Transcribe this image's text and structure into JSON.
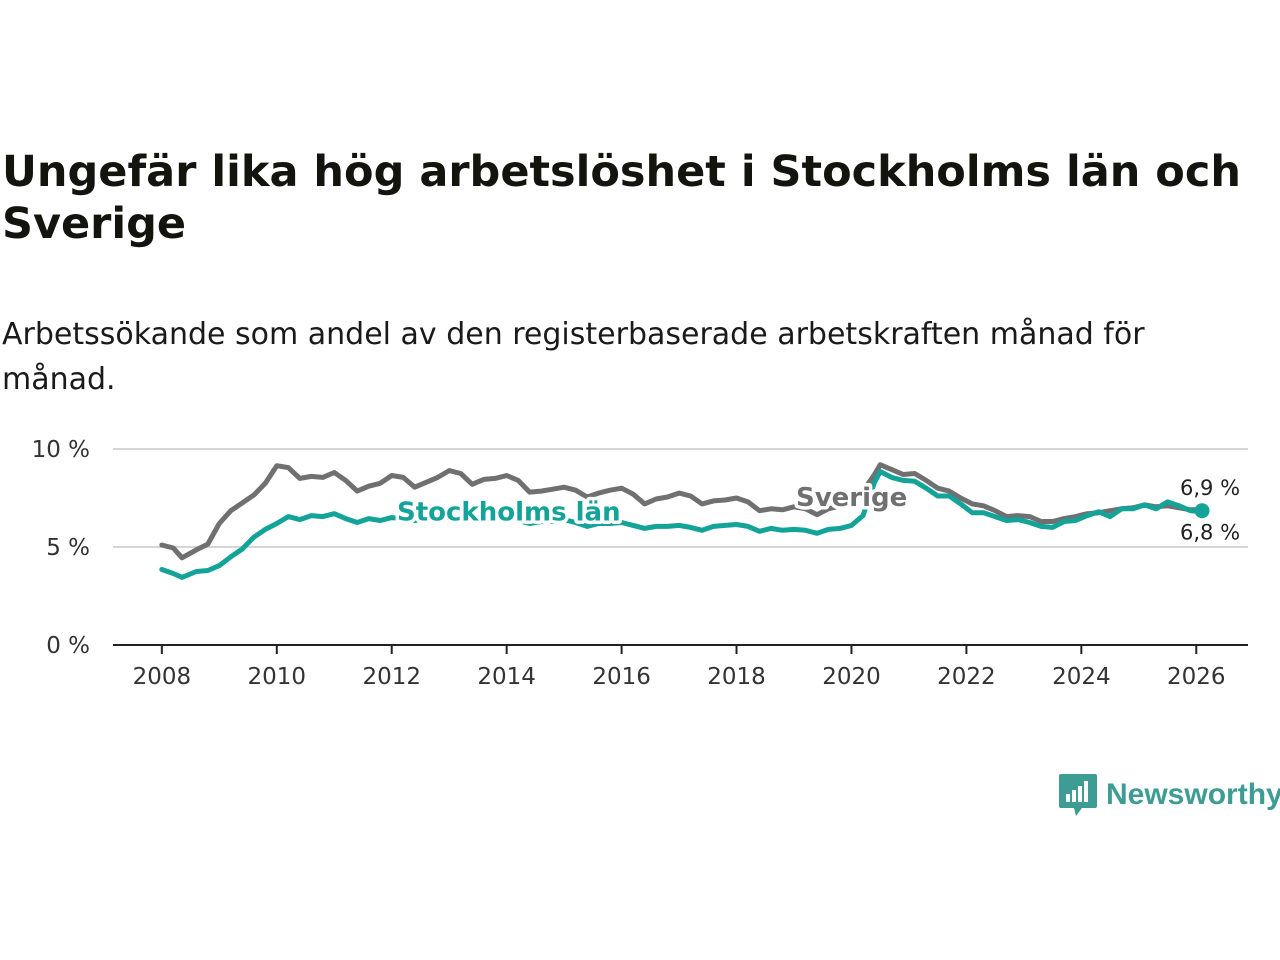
{
  "title": "Ungefär lika hög arbetslöshet i Stockholms län och Sverige",
  "subtitle": "Arbetssökande som andel av den registerbaserade arbetskraften månad för månad.",
  "brand": {
    "name": "Newsworthy",
    "icon": "newsworthy-chart-bubble-icon",
    "color": "#3d9c94"
  },
  "chart_data": {
    "type": "line",
    "title": "Ungefär lika hög arbetslöshet i Stockholms län och Sverige",
    "subtitle": "Arbetssökande som andel av den registerbaserade arbetskraften månad för månad.",
    "xlabel": "",
    "ylabel": "",
    "xlim": [
      2007.15,
      2026.9
    ],
    "ylim": [
      0,
      10
    ],
    "grid": true,
    "x_ticks": [
      2008,
      2010,
      2012,
      2014,
      2016,
      2018,
      2020,
      2022,
      2024,
      2026
    ],
    "x_tick_labels": [
      "2008",
      "2010",
      "2012",
      "2014",
      "2016",
      "2018",
      "2020",
      "2022",
      "2024",
      "2026"
    ],
    "y_ticks": [
      0,
      5,
      10
    ],
    "y_tick_labels": [
      "0 %",
      "5 %",
      "10 %"
    ],
    "series": [
      {
        "name": "Sverige",
        "color": "#707070",
        "label_position": "inline",
        "end_label": "6,9 %",
        "points": [
          [
            2008.0,
            5.1
          ],
          [
            2008.2,
            4.95
          ],
          [
            2008.35,
            4.45
          ],
          [
            2008.6,
            4.85
          ],
          [
            2008.8,
            5.15
          ],
          [
            2009.0,
            6.2
          ],
          [
            2009.2,
            6.85
          ],
          [
            2009.4,
            7.25
          ],
          [
            2009.6,
            7.65
          ],
          [
            2009.8,
            8.25
          ],
          [
            2010.0,
            9.15
          ],
          [
            2010.2,
            9.05
          ],
          [
            2010.4,
            8.5
          ],
          [
            2010.6,
            8.6
          ],
          [
            2010.8,
            8.55
          ],
          [
            2011.0,
            8.8
          ],
          [
            2011.2,
            8.4
          ],
          [
            2011.4,
            7.85
          ],
          [
            2011.6,
            8.1
          ],
          [
            2011.8,
            8.25
          ],
          [
            2012.0,
            8.65
          ],
          [
            2012.2,
            8.55
          ],
          [
            2012.4,
            8.05
          ],
          [
            2012.6,
            8.3
          ],
          [
            2012.8,
            8.55
          ],
          [
            2013.0,
            8.9
          ],
          [
            2013.2,
            8.75
          ],
          [
            2013.4,
            8.2
          ],
          [
            2013.6,
            8.45
          ],
          [
            2013.8,
            8.5
          ],
          [
            2014.0,
            8.65
          ],
          [
            2014.2,
            8.4
          ],
          [
            2014.4,
            7.8
          ],
          [
            2014.6,
            7.85
          ],
          [
            2014.8,
            7.95
          ],
          [
            2015.0,
            8.05
          ],
          [
            2015.2,
            7.9
          ],
          [
            2015.4,
            7.55
          ],
          [
            2015.6,
            7.75
          ],
          [
            2015.8,
            7.9
          ],
          [
            2016.0,
            8.0
          ],
          [
            2016.2,
            7.7
          ],
          [
            2016.4,
            7.2
          ],
          [
            2016.6,
            7.45
          ],
          [
            2016.8,
            7.55
          ],
          [
            2017.0,
            7.75
          ],
          [
            2017.2,
            7.6
          ],
          [
            2017.4,
            7.2
          ],
          [
            2017.6,
            7.35
          ],
          [
            2017.8,
            7.4
          ],
          [
            2018.0,
            7.5
          ],
          [
            2018.2,
            7.3
          ],
          [
            2018.4,
            6.85
          ],
          [
            2018.6,
            6.95
          ],
          [
            2018.8,
            6.9
          ],
          [
            2019.0,
            7.05
          ],
          [
            2019.2,
            6.95
          ],
          [
            2019.4,
            6.65
          ],
          [
            2019.6,
            6.95
          ],
          [
            2019.8,
            7.1
          ],
          [
            2020.0,
            7.25
          ],
          [
            2020.2,
            7.85
          ],
          [
            2020.4,
            8.7
          ],
          [
            2020.5,
            9.2
          ],
          [
            2020.7,
            8.95
          ],
          [
            2020.9,
            8.7
          ],
          [
            2021.1,
            8.75
          ],
          [
            2021.3,
            8.4
          ],
          [
            2021.5,
            8.0
          ],
          [
            2021.7,
            7.85
          ],
          [
            2021.9,
            7.5
          ],
          [
            2022.1,
            7.2
          ],
          [
            2022.3,
            7.1
          ],
          [
            2022.5,
            6.85
          ],
          [
            2022.7,
            6.55
          ],
          [
            2022.9,
            6.6
          ],
          [
            2023.1,
            6.55
          ],
          [
            2023.3,
            6.3
          ],
          [
            2023.5,
            6.3
          ],
          [
            2023.7,
            6.45
          ],
          [
            2023.9,
            6.55
          ],
          [
            2024.1,
            6.7
          ],
          [
            2024.3,
            6.75
          ],
          [
            2024.5,
            6.85
          ],
          [
            2024.7,
            6.95
          ],
          [
            2024.9,
            7.0
          ],
          [
            2025.1,
            7.15
          ],
          [
            2025.3,
            7.05
          ],
          [
            2025.5,
            7.1
          ],
          [
            2025.7,
            7.0
          ],
          [
            2025.9,
            6.9
          ],
          [
            2026.1,
            6.9
          ]
        ]
      },
      {
        "name": "Stockholms län",
        "color": "#13a398",
        "label_position": "inline",
        "end_label": "6,8 %",
        "points": [
          [
            2008.0,
            3.85
          ],
          [
            2008.2,
            3.65
          ],
          [
            2008.35,
            3.45
          ],
          [
            2008.6,
            3.75
          ],
          [
            2008.8,
            3.8
          ],
          [
            2009.0,
            4.05
          ],
          [
            2009.2,
            4.5
          ],
          [
            2009.4,
            4.9
          ],
          [
            2009.6,
            5.5
          ],
          [
            2009.8,
            5.9
          ],
          [
            2010.0,
            6.2
          ],
          [
            2010.2,
            6.55
          ],
          [
            2010.4,
            6.4
          ],
          [
            2010.6,
            6.6
          ],
          [
            2010.8,
            6.55
          ],
          [
            2011.0,
            6.7
          ],
          [
            2011.2,
            6.45
          ],
          [
            2011.4,
            6.25
          ],
          [
            2011.6,
            6.45
          ],
          [
            2011.8,
            6.35
          ],
          [
            2012.0,
            6.5
          ],
          [
            2012.2,
            6.45
          ],
          [
            2012.4,
            6.35
          ],
          [
            2012.6,
            6.45
          ],
          [
            2012.8,
            6.5
          ],
          [
            2013.0,
            6.6
          ],
          [
            2013.2,
            6.5
          ],
          [
            2013.4,
            6.35
          ],
          [
            2013.6,
            6.45
          ],
          [
            2013.8,
            6.4
          ],
          [
            2014.0,
            6.5
          ],
          [
            2014.2,
            6.35
          ],
          [
            2014.4,
            6.2
          ],
          [
            2014.6,
            6.3
          ],
          [
            2014.8,
            6.3
          ],
          [
            2015.0,
            6.4
          ],
          [
            2015.2,
            6.25
          ],
          [
            2015.4,
            6.05
          ],
          [
            2015.6,
            6.2
          ],
          [
            2015.8,
            6.2
          ],
          [
            2016.0,
            6.25
          ],
          [
            2016.2,
            6.1
          ],
          [
            2016.4,
            5.95
          ],
          [
            2016.6,
            6.05
          ],
          [
            2016.8,
            6.05
          ],
          [
            2017.0,
            6.1
          ],
          [
            2017.2,
            6.0
          ],
          [
            2017.4,
            5.85
          ],
          [
            2017.6,
            6.05
          ],
          [
            2017.8,
            6.1
          ],
          [
            2018.0,
            6.15
          ],
          [
            2018.2,
            6.05
          ],
          [
            2018.4,
            5.8
          ],
          [
            2018.6,
            5.95
          ],
          [
            2018.8,
            5.85
          ],
          [
            2019.0,
            5.9
          ],
          [
            2019.2,
            5.85
          ],
          [
            2019.4,
            5.7
          ],
          [
            2019.6,
            5.9
          ],
          [
            2019.8,
            5.95
          ],
          [
            2020.0,
            6.1
          ],
          [
            2020.2,
            6.6
          ],
          [
            2020.4,
            8.3
          ],
          [
            2020.5,
            8.85
          ],
          [
            2020.7,
            8.55
          ],
          [
            2020.9,
            8.4
          ],
          [
            2021.1,
            8.35
          ],
          [
            2021.3,
            8.0
          ],
          [
            2021.5,
            7.6
          ],
          [
            2021.7,
            7.6
          ],
          [
            2021.9,
            7.2
          ],
          [
            2022.1,
            6.75
          ],
          [
            2022.3,
            6.75
          ],
          [
            2022.5,
            6.55
          ],
          [
            2022.7,
            6.35
          ],
          [
            2022.9,
            6.4
          ],
          [
            2023.1,
            6.25
          ],
          [
            2023.3,
            6.05
          ],
          [
            2023.5,
            6.0
          ],
          [
            2023.7,
            6.3
          ],
          [
            2023.9,
            6.35
          ],
          [
            2024.1,
            6.6
          ],
          [
            2024.3,
            6.8
          ],
          [
            2024.5,
            6.55
          ],
          [
            2024.7,
            6.95
          ],
          [
            2024.9,
            6.95
          ],
          [
            2025.1,
            7.15
          ],
          [
            2025.3,
            6.95
          ],
          [
            2025.5,
            7.3
          ],
          [
            2025.7,
            7.1
          ],
          [
            2025.9,
            6.85
          ],
          [
            2026.1,
            6.8
          ]
        ]
      }
    ],
    "annotations": [
      {
        "text": "Sverige",
        "series": "Sverige"
      },
      {
        "text": "Stockholms län",
        "series": "Stockholms län"
      }
    ]
  }
}
